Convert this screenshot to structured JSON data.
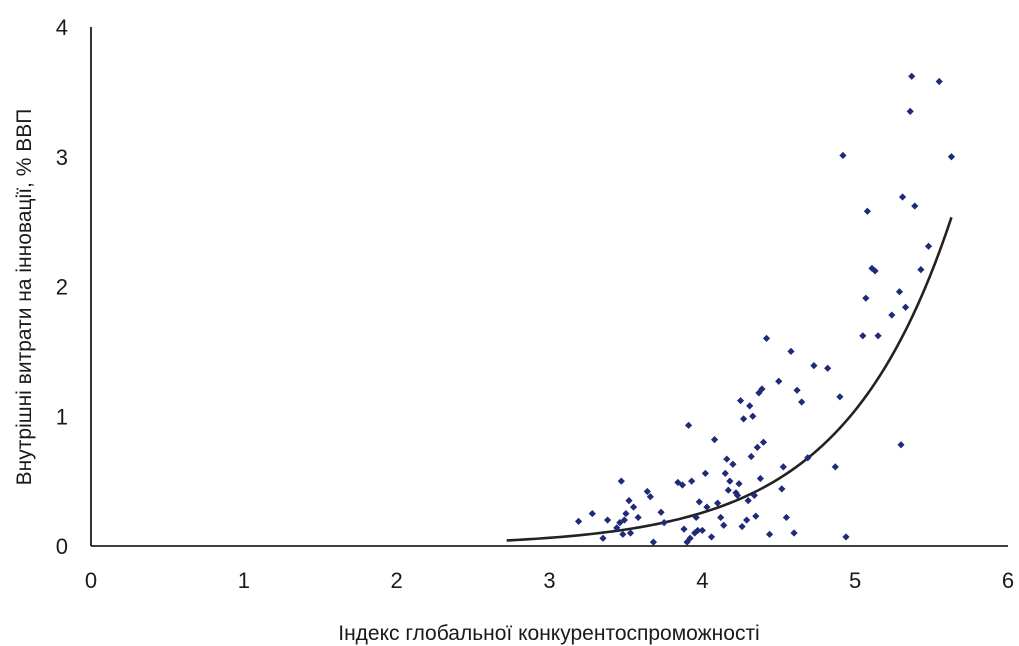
{
  "chart_data": {
    "type": "scatter",
    "xlabel": "Індекс глобальної конкурентоспроможності",
    "ylabel": "Внутрішні витрати на інновації, % ВВП",
    "xlim": [
      0,
      6
    ],
    "ylim": [
      0,
      4
    ],
    "xticks": [
      "0",
      "1",
      "2",
      "3",
      "4",
      "5",
      "6"
    ],
    "yticks": [
      "0",
      "1",
      "2",
      "3",
      "4"
    ],
    "grid": false,
    "colors": {
      "points": "#1f2a7a",
      "trendline": "#222222",
      "axis": "#000000"
    },
    "trendline": {
      "type": "exponential",
      "a": 0.000935,
      "b": 1.404,
      "x_range": [
        2.72,
        5.63
      ]
    },
    "points": [
      [
        3.19,
        0.19
      ],
      [
        3.28,
        0.25
      ],
      [
        3.35,
        0.06
      ],
      [
        3.38,
        0.2
      ],
      [
        3.44,
        0.14
      ],
      [
        3.46,
        0.18
      ],
      [
        3.47,
        0.5
      ],
      [
        3.48,
        0.09
      ],
      [
        3.49,
        0.2
      ],
      [
        3.5,
        0.25
      ],
      [
        3.52,
        0.35
      ],
      [
        3.53,
        0.1
      ],
      [
        3.55,
        0.3
      ],
      [
        3.58,
        0.22
      ],
      [
        3.64,
        0.42
      ],
      [
        3.66,
        0.38
      ],
      [
        3.68,
        0.03
      ],
      [
        3.73,
        0.26
      ],
      [
        3.75,
        0.18
      ],
      [
        3.84,
        0.49
      ],
      [
        3.87,
        0.47
      ],
      [
        3.88,
        0.13
      ],
      [
        3.9,
        0.03
      ],
      [
        3.91,
        0.93
      ],
      [
        3.92,
        0.06
      ],
      [
        3.93,
        0.5
      ],
      [
        3.95,
        0.1
      ],
      [
        3.96,
        0.22
      ],
      [
        3.97,
        0.12
      ],
      [
        3.98,
        0.34
      ],
      [
        4.0,
        0.12
      ],
      [
        4.02,
        0.56
      ],
      [
        4.03,
        0.3
      ],
      [
        4.06,
        0.07
      ],
      [
        4.08,
        0.82
      ],
      [
        4.1,
        0.33
      ],
      [
        4.12,
        0.22
      ],
      [
        4.14,
        0.16
      ],
      [
        4.15,
        0.56
      ],
      [
        4.16,
        0.67
      ],
      [
        4.17,
        0.43
      ],
      [
        4.18,
        0.5
      ],
      [
        4.2,
        0.63
      ],
      [
        4.22,
        0.41
      ],
      [
        4.23,
        0.39
      ],
      [
        4.24,
        0.48
      ],
      [
        4.25,
        1.12
      ],
      [
        4.26,
        0.15
      ],
      [
        4.27,
        0.98
      ],
      [
        4.29,
        0.2
      ],
      [
        4.3,
        0.35
      ],
      [
        4.31,
        1.08
      ],
      [
        4.32,
        0.69
      ],
      [
        4.33,
        1.0
      ],
      [
        4.34,
        0.39
      ],
      [
        4.35,
        0.23
      ],
      [
        4.36,
        0.76
      ],
      [
        4.37,
        1.18
      ],
      [
        4.38,
        0.52
      ],
      [
        4.39,
        1.21
      ],
      [
        4.4,
        0.8
      ],
      [
        4.42,
        1.6
      ],
      [
        4.44,
        0.09
      ],
      [
        4.5,
        1.27
      ],
      [
        4.52,
        0.44
      ],
      [
        4.53,
        0.61
      ],
      [
        4.55,
        0.22
      ],
      [
        4.58,
        1.5
      ],
      [
        4.6,
        0.1
      ],
      [
        4.62,
        1.2
      ],
      [
        4.65,
        1.11
      ],
      [
        4.69,
        0.68
      ],
      [
        4.73,
        1.39
      ],
      [
        4.82,
        1.37
      ],
      [
        4.87,
        0.61
      ],
      [
        4.9,
        1.15
      ],
      [
        4.92,
        3.01
      ],
      [
        4.94,
        0.07
      ],
      [
        5.05,
        1.62
      ],
      [
        5.07,
        1.91
      ],
      [
        5.08,
        2.58
      ],
      [
        5.11,
        2.14
      ],
      [
        5.13,
        2.12
      ],
      [
        5.15,
        1.62
      ],
      [
        5.24,
        1.78
      ],
      [
        5.29,
        1.96
      ],
      [
        5.3,
        0.78
      ],
      [
        5.31,
        2.69
      ],
      [
        5.33,
        1.84
      ],
      [
        5.36,
        3.35
      ],
      [
        5.37,
        3.62
      ],
      [
        5.39,
        2.62
      ],
      [
        5.43,
        2.13
      ],
      [
        5.48,
        2.31
      ],
      [
        5.55,
        3.58
      ],
      [
        5.63,
        3.0
      ]
    ]
  }
}
